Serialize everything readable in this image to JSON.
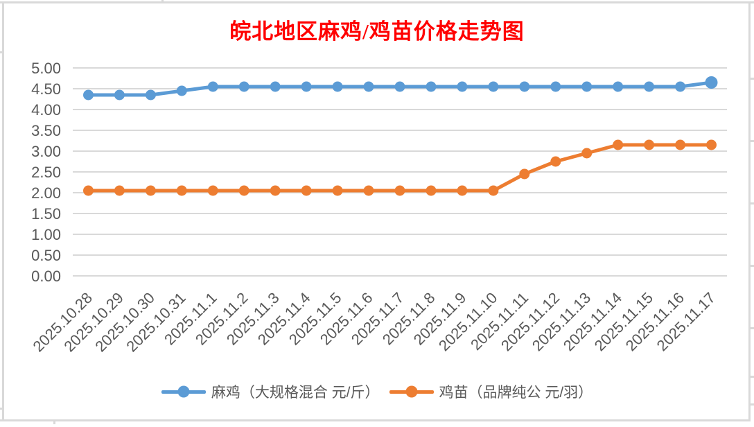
{
  "title": {
    "text": "皖北地区麻鸡/鸡苗价格走势图"
  },
  "chart_data": {
    "type": "line",
    "title": "皖北地区麻鸡/鸡苗价格走势图",
    "categories": [
      "2025.10.28",
      "2025.10.29",
      "2025.10.30",
      "2025.10.31",
      "2025.11.1",
      "2025.11.2",
      "2025.11.3",
      "2025.11.4",
      "2025.11.5",
      "2025.11.6",
      "2025.11.7",
      "2025.11.8",
      "2025.11.9",
      "2025.11.10",
      "2025.11.11",
      "2025.11.12",
      "2025.11.13",
      "2025.11.14",
      "2025.11.15",
      "2025.11.16",
      "2025.11.17"
    ],
    "series": [
      {
        "name": "麻鸡（大规格混合 元/斤）",
        "color": "#5B9BD5",
        "values": [
          4.35,
          4.35,
          4.35,
          4.45,
          4.55,
          4.55,
          4.55,
          4.55,
          4.55,
          4.55,
          4.55,
          4.55,
          4.55,
          4.55,
          4.55,
          4.55,
          4.55,
          4.55,
          4.55,
          4.55,
          4.65
        ]
      },
      {
        "name": "鸡苗（品牌纯公 元/羽）",
        "color": "#ED7D31",
        "values": [
          2.05,
          2.05,
          2.05,
          2.05,
          2.05,
          2.05,
          2.05,
          2.05,
          2.05,
          2.05,
          2.05,
          2.05,
          2.05,
          2.05,
          2.45,
          2.75,
          2.95,
          3.15,
          3.15,
          3.15,
          3.15
        ]
      }
    ],
    "ylim": [
      0,
      5
    ],
    "ytick_step": 0.5,
    "ytick_labels": [
      "0.00",
      "0.50",
      "1.00",
      "1.50",
      "2.00",
      "2.50",
      "3.00",
      "3.50",
      "4.00",
      "4.50",
      "5.00"
    ],
    "grid": true,
    "legend_position": "bottom",
    "xlabel": "",
    "ylabel": "",
    "colors": {
      "title": "#FF0000",
      "gridline": "#D9D9D9",
      "axis_text": "#595959",
      "frame": "#D9D9D9"
    }
  }
}
